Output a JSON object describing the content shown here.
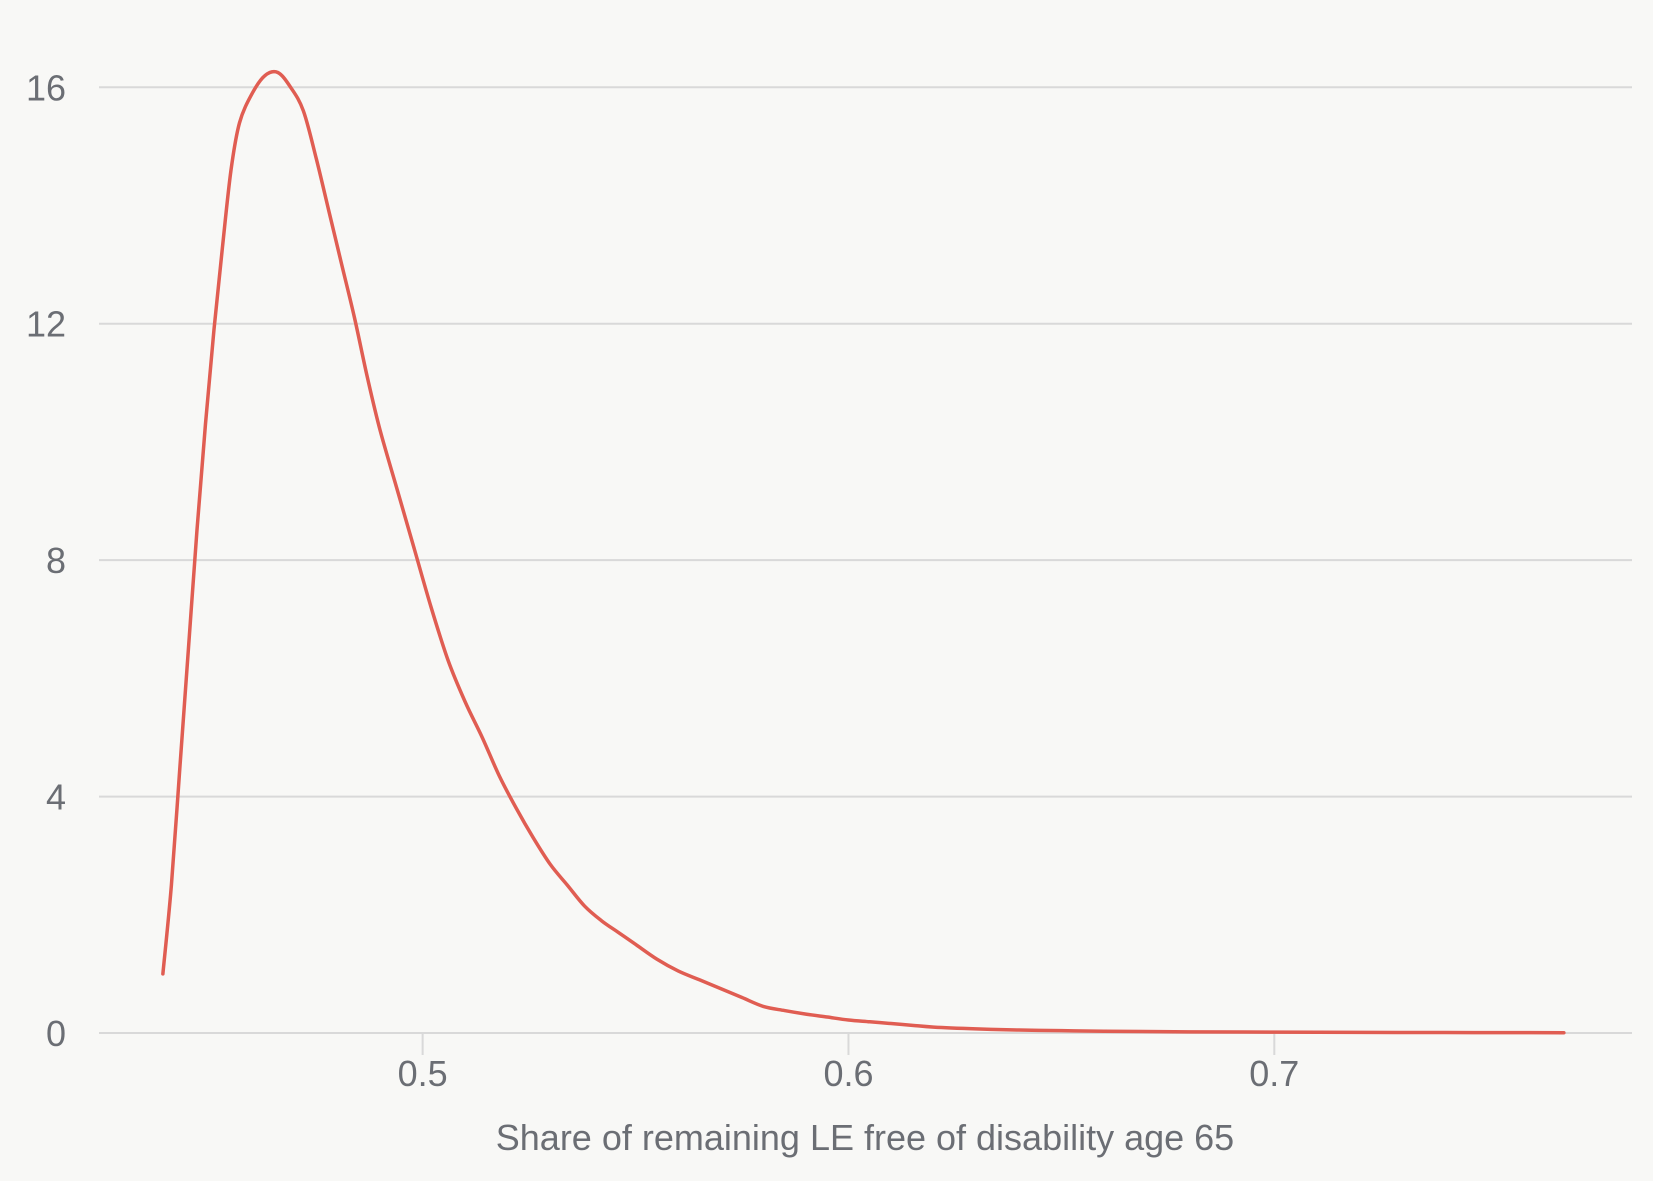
{
  "chart_data": {
    "type": "line",
    "title": "",
    "xlabel": "Share of remaining LE free of disability age 65",
    "ylabel": "",
    "xlim": [
      0.424,
      0.784
    ],
    "ylim": [
      0,
      16.8
    ],
    "x_ticks": [
      {
        "value": 0.5,
        "label": "0.5"
      },
      {
        "value": 0.6,
        "label": "0.6"
      },
      {
        "value": 0.7,
        "label": "0.7"
      }
    ],
    "y_ticks": [
      {
        "value": 0,
        "label": "0"
      },
      {
        "value": 4,
        "label": "4"
      },
      {
        "value": 8,
        "label": "8"
      },
      {
        "value": 12,
        "label": "12"
      },
      {
        "value": 16,
        "label": "16"
      }
    ],
    "grid": {
      "horizontal": true,
      "vertical": false
    },
    "legend": "none",
    "colors": {
      "line": "#e05d52",
      "grid": "#d9d9d9",
      "text": "#6b6e74",
      "background": "#f8f8f6"
    },
    "series": [
      {
        "points": [
          [
            0.439,
            1.0
          ],
          [
            0.441,
            2.5
          ],
          [
            0.443,
            4.5
          ],
          [
            0.445,
            6.5
          ],
          [
            0.447,
            8.5
          ],
          [
            0.449,
            10.3
          ],
          [
            0.451,
            11.9
          ],
          [
            0.453,
            13.3
          ],
          [
            0.455,
            14.6
          ],
          [
            0.457,
            15.4
          ],
          [
            0.46,
            15.9
          ],
          [
            0.463,
            16.2
          ],
          [
            0.466,
            16.25
          ],
          [
            0.469,
            16.0
          ],
          [
            0.472,
            15.6
          ],
          [
            0.475,
            14.8
          ],
          [
            0.478,
            13.9
          ],
          [
            0.481,
            13.0
          ],
          [
            0.484,
            12.1
          ],
          [
            0.487,
            11.1
          ],
          [
            0.49,
            10.2
          ],
          [
            0.494,
            9.2
          ],
          [
            0.498,
            8.2
          ],
          [
            0.502,
            7.2
          ],
          [
            0.506,
            6.3
          ],
          [
            0.51,
            5.6
          ],
          [
            0.514,
            5.0
          ],
          [
            0.518,
            4.35
          ],
          [
            0.522,
            3.8
          ],
          [
            0.526,
            3.3
          ],
          [
            0.53,
            2.85
          ],
          [
            0.534,
            2.5
          ],
          [
            0.538,
            2.15
          ],
          [
            0.542,
            1.9
          ],
          [
            0.546,
            1.7
          ],
          [
            0.55,
            1.5
          ],
          [
            0.555,
            1.25
          ],
          [
            0.56,
            1.05
          ],
          [
            0.565,
            0.9
          ],
          [
            0.57,
            0.75
          ],
          [
            0.575,
            0.6
          ],
          [
            0.58,
            0.45
          ],
          [
            0.585,
            0.38
          ],
          [
            0.59,
            0.32
          ],
          [
            0.595,
            0.27
          ],
          [
            0.6,
            0.22
          ],
          [
            0.605,
            0.19
          ],
          [
            0.61,
            0.16
          ],
          [
            0.615,
            0.13
          ],
          [
            0.62,
            0.1
          ],
          [
            0.63,
            0.07
          ],
          [
            0.64,
            0.05
          ],
          [
            0.65,
            0.04
          ],
          [
            0.66,
            0.03
          ],
          [
            0.68,
            0.02
          ],
          [
            0.7,
            0.015
          ],
          [
            0.72,
            0.01
          ],
          [
            0.74,
            0.008
          ],
          [
            0.76,
            0.006
          ],
          [
            0.768,
            0.005
          ]
        ]
      }
    ]
  }
}
